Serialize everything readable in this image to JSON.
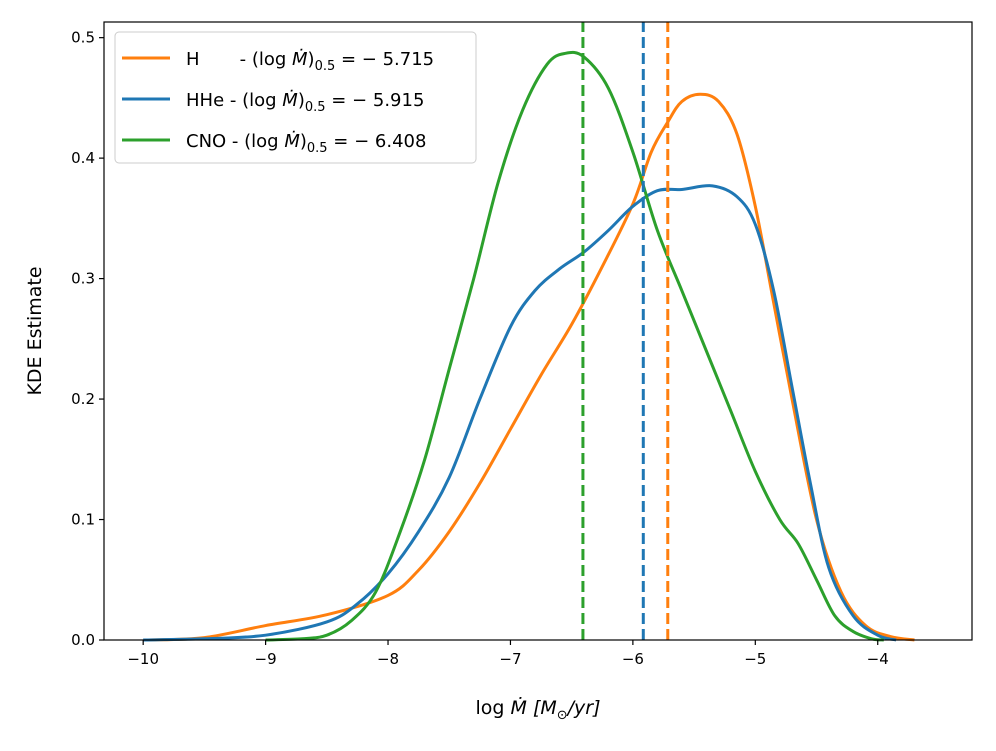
{
  "chart_data": {
    "type": "line",
    "title": "",
    "xlabel": {
      "prefix": "log ",
      "symbol": "Ṁ",
      "units": "[M",
      "sub": "⊙",
      "units_end": "/yr]"
    },
    "ylabel": "KDE Estimate",
    "xlim": [
      -10.32,
      -3.23
    ],
    "ylim": [
      0,
      0.513
    ],
    "xticks": [
      -10,
      -9,
      -8,
      -7,
      -6,
      -5,
      -4
    ],
    "xtick_labels": [
      "−10",
      "−9",
      "−8",
      "−7",
      "−6",
      "−5",
      "−4"
    ],
    "yticks": [
      0,
      0.1,
      0.2,
      0.3,
      0.4,
      0.5
    ],
    "ytick_labels": [
      "0.0",
      "0.1",
      "0.2",
      "0.3",
      "0.4",
      "0.5"
    ],
    "grid": false,
    "legend_position": "top-left",
    "series": [
      {
        "name": "H",
        "legend": {
          "name": "H      ",
          "prefix": " - (log ",
          "symbol": "Ṁ",
          "close": ")",
          "sub": "0.5",
          "suffix": " = − 5.715"
        },
        "color": "#ff7f0e",
        "median": -5.715,
        "x": [
          -9.95,
          -9.5,
          -9.0,
          -8.5,
          -8.0,
          -7.75,
          -7.5,
          -7.25,
          -7.0,
          -6.75,
          -6.5,
          -6.25,
          -6.0,
          -5.85,
          -5.715,
          -5.6,
          -5.45,
          -5.3,
          -5.15,
          -5.0,
          -4.85,
          -4.7,
          -4.5,
          -4.3,
          -4.1,
          -3.9,
          -3.7
        ],
        "y": [
          0.0,
          0.002,
          0.012,
          0.021,
          0.037,
          0.058,
          0.09,
          0.13,
          0.175,
          0.22,
          0.262,
          0.31,
          0.362,
          0.405,
          0.43,
          0.447,
          0.453,
          0.447,
          0.42,
          0.36,
          0.28,
          0.2,
          0.1,
          0.04,
          0.012,
          0.003,
          0.0
        ]
      },
      {
        "name": "HHe",
        "legend": {
          "name": "HHe",
          "prefix": " - (log ",
          "symbol": "Ṁ",
          "close": ")",
          "sub": "0.5",
          "suffix": " = − 5.915"
        },
        "color": "#1f77b4",
        "median": -5.915,
        "x": [
          -10.0,
          -9.5,
          -9.0,
          -8.5,
          -8.25,
          -8.0,
          -7.75,
          -7.5,
          -7.25,
          -7.0,
          -6.8,
          -6.6,
          -6.4,
          -6.2,
          -6.0,
          -5.8,
          -5.6,
          -5.35,
          -5.15,
          -5.0,
          -4.85,
          -4.7,
          -4.55,
          -4.4,
          -4.2,
          -4.0,
          -3.85
        ],
        "y": [
          0.0,
          0.001,
          0.004,
          0.015,
          0.03,
          0.055,
          0.09,
          0.135,
          0.2,
          0.26,
          0.29,
          0.308,
          0.322,
          0.34,
          0.36,
          0.373,
          0.374,
          0.377,
          0.368,
          0.345,
          0.29,
          0.21,
          0.13,
          0.06,
          0.02,
          0.004,
          0.0
        ]
      },
      {
        "name": "CNO",
        "legend": {
          "name": "CNO",
          "prefix": " - (log ",
          "symbol": "Ṁ",
          "close": ")",
          "sub": "0.5",
          "suffix": " = − 6.408"
        },
        "color": "#2ca02c",
        "median": -6.408,
        "x": [
          -9.0,
          -8.7,
          -8.5,
          -8.3,
          -8.1,
          -7.9,
          -7.7,
          -7.5,
          -7.3,
          -7.1,
          -6.9,
          -6.7,
          -6.55,
          -6.4,
          -6.2,
          -6.0,
          -5.8,
          -5.6,
          -5.4,
          -5.2,
          -5.0,
          -4.8,
          -4.65,
          -4.5,
          -4.35,
          -4.2,
          -4.05,
          -3.95
        ],
        "y": [
          0.0,
          0.001,
          0.004,
          0.016,
          0.04,
          0.09,
          0.15,
          0.225,
          0.3,
          0.38,
          0.44,
          0.478,
          0.487,
          0.484,
          0.458,
          0.405,
          0.34,
          0.29,
          0.24,
          0.19,
          0.14,
          0.1,
          0.08,
          0.05,
          0.02,
          0.007,
          0.001,
          0.0
        ]
      }
    ]
  }
}
